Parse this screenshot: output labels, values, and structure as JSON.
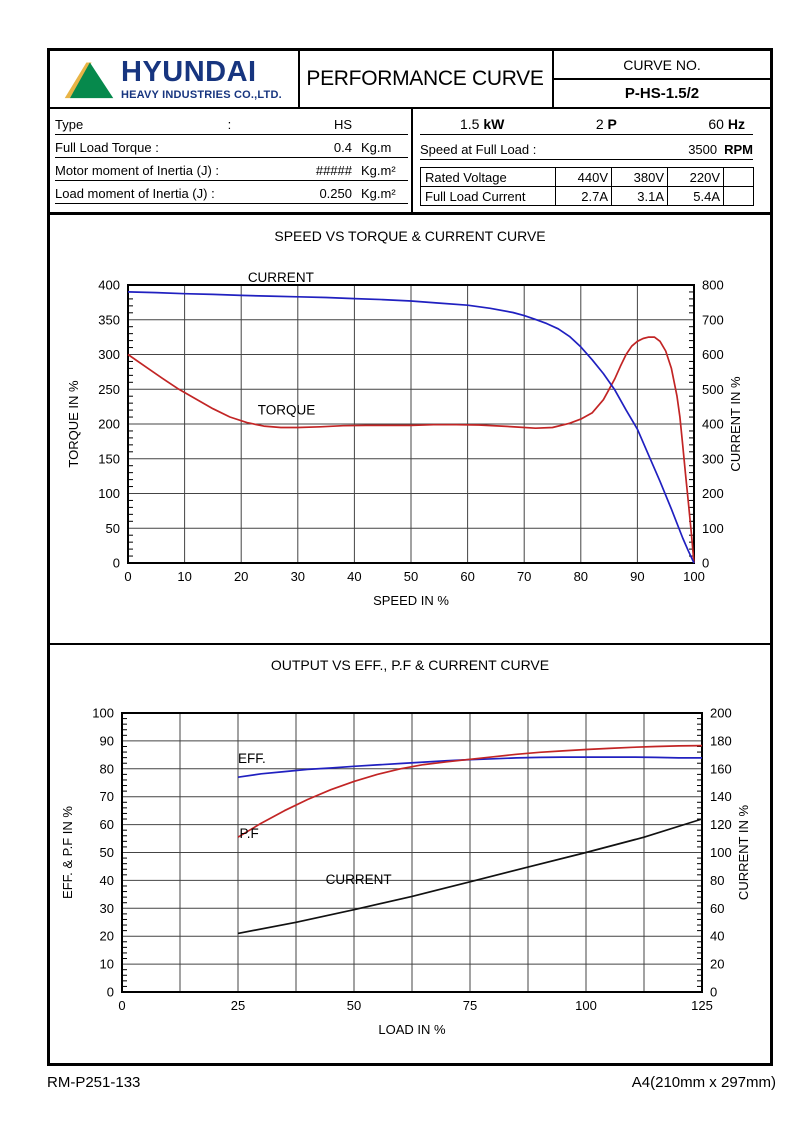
{
  "header": {
    "logo": {
      "company": "HYUNDAI",
      "subtitle": "HEAVY INDUSTRIES CO.,LTD.",
      "navy": "#17357F",
      "green": "#06894C",
      "yellow": "#E8B446"
    },
    "title": "PERFORMANCE CURVE",
    "curve_no_label": "CURVE NO.",
    "curve_no_value": "P-HS-1.5/2"
  },
  "specs_left": {
    "rows": [
      {
        "label": "Type                                        :",
        "value": "HS",
        "unit": ""
      },
      {
        "label": "Full Load Torque :",
        "value": "0.4",
        "unit": "Kg.m"
      },
      {
        "label": "Motor moment of Inertia (J) :",
        "value": "#####",
        "unit": "Kg.m²"
      },
      {
        "label": "Load moment of Inertia (J) :",
        "value": "0.250",
        "unit": "Kg.m²"
      }
    ]
  },
  "specs_right": {
    "power": {
      "value": "1.5",
      "unit": "kW"
    },
    "poles": {
      "value": "2",
      "unit": "P"
    },
    "frequency": {
      "value": "60",
      "unit": "Hz"
    },
    "speed": {
      "label": "Speed at Full Load :",
      "value": "3500",
      "unit": "RPM"
    },
    "table": {
      "rows": [
        [
          "Rated Voltage",
          "440V",
          "380V",
          "220V",
          ""
        ],
        [
          "Full Load Current",
          "2.7A",
          "3.1A",
          "5.4A",
          ""
        ]
      ]
    }
  },
  "footer": {
    "left": "RM-P251-133",
    "right": "A4(210mm x 297mm)"
  },
  "chart_data": [
    {
      "id": "speed-torque-current",
      "type": "line",
      "title": "SPEED VS TORQUE & CURRENT CURVE",
      "xlabel": "SPEED IN %",
      "ylabel_left": "TORQUE IN %",
      "ylabel_right": "CURRENT IN %",
      "x_range": [
        0,
        100
      ],
      "x_major": 10,
      "left_range": [
        0,
        400
      ],
      "left_major": 50,
      "left_minor": 10,
      "right_range": [
        0,
        800
      ],
      "right_major": 100,
      "grid": {
        "v_step": 10,
        "h_step": 50
      },
      "series": [
        {
          "name": "TORQUE",
          "axis": "left",
          "color": "#c22525",
          "points": [
            [
              0,
              300
            ],
            [
              3,
              283
            ],
            [
              6,
              266
            ],
            [
              9,
              250
            ],
            [
              12,
              236
            ],
            [
              15,
              222
            ],
            [
              18,
              210
            ],
            [
              21,
              202
            ],
            [
              24,
              197
            ],
            [
              27,
              195
            ],
            [
              30,
              195
            ],
            [
              34,
              196
            ],
            [
              38,
              197.5
            ],
            [
              42,
              198
            ],
            [
              46,
              198
            ],
            [
              50,
              198
            ],
            [
              54,
              199
            ],
            [
              58,
              199
            ],
            [
              62,
              198.5
            ],
            [
              66,
              197
            ],
            [
              69,
              195.5
            ],
            [
              72,
              194
            ],
            [
              75,
              195
            ],
            [
              78,
              201
            ],
            [
              80,
              207
            ],
            [
              82,
              216
            ],
            [
              84,
              235
            ],
            [
              85,
              250
            ],
            [
              86,
              265
            ],
            [
              87,
              283
            ],
            [
              88,
              300
            ],
            [
              89,
              312
            ],
            [
              90,
              319
            ],
            [
              91,
              323
            ],
            [
              92,
              325
            ],
            [
              93,
              325
            ],
            [
              94,
              319
            ],
            [
              95,
              305
            ],
            [
              96,
              280
            ],
            [
              97,
              240
            ],
            [
              97.5,
              210
            ],
            [
              98,
              170
            ],
            [
              98.5,
              128
            ],
            [
              99,
              88
            ],
            [
              99.5,
              45
            ],
            [
              100,
              0
            ]
          ]
        },
        {
          "name": "CURRENT",
          "axis": "right",
          "color": "#2020c0",
          "points": [
            [
              0,
              780
            ],
            [
              5,
              778
            ],
            [
              10,
              775
            ],
            [
              15,
              773
            ],
            [
              20,
              770
            ],
            [
              25,
              768
            ],
            [
              30,
              766
            ],
            [
              35,
              764
            ],
            [
              40,
              761
            ],
            [
              45,
              758
            ],
            [
              50,
              754
            ],
            [
              55,
              748
            ],
            [
              60,
              742
            ],
            [
              64,
              733
            ],
            [
              68,
              721
            ],
            [
              70,
              712
            ],
            [
              72,
              701
            ],
            [
              74,
              689
            ],
            [
              76,
              674
            ],
            [
              78,
              652
            ],
            [
              80,
              622
            ],
            [
              82,
              585
            ],
            [
              84,
              545
            ],
            [
              86,
              498
            ],
            [
              88,
              440
            ],
            [
              90,
              385
            ],
            [
              92,
              310
            ],
            [
              94,
              235
            ],
            [
              96,
              155
            ],
            [
              98,
              72
            ],
            [
              99,
              35
            ],
            [
              100,
              0
            ]
          ]
        }
      ],
      "annotations": [
        {
          "text": "CURRENT",
          "x": 27,
          "y": 404
        },
        {
          "text": "TORQUE",
          "x": 28,
          "y": 214
        }
      ]
    },
    {
      "id": "output-eff-pf-current",
      "type": "line",
      "title": "OUTPUT VS EFF., P.F & CURRENT CURVE",
      "xlabel": "LOAD IN %",
      "ylabel_left": "EFF. & P.F IN %",
      "ylabel_right": "CURRENT IN %",
      "x_range": [
        0,
        125
      ],
      "x_major": 25,
      "left_range": [
        0,
        100
      ],
      "left_major": 10,
      "left_minor": 2,
      "right_range": [
        0,
        200
      ],
      "right_major": 20,
      "grid": {
        "v_step": 12.5,
        "h_step": 10
      },
      "series": [
        {
          "name": "EFF.",
          "axis": "left",
          "color": "#2020c0",
          "points": [
            [
              25,
              77
            ],
            [
              30,
              78.2
            ],
            [
              35,
              79
            ],
            [
              40,
              79.8
            ],
            [
              45,
              80.3
            ],
            [
              50,
              80.9
            ],
            [
              55,
              81.4
            ],
            [
              60,
              81.9
            ],
            [
              65,
              82.4
            ],
            [
              70,
              82.9
            ],
            [
              75,
              83.3
            ],
            [
              80,
              83.6
            ],
            [
              85,
              83.9
            ],
            [
              90,
              84.1
            ],
            [
              95,
              84.2
            ],
            [
              100,
              84.2
            ],
            [
              105,
              84.2
            ],
            [
              110,
              84.2
            ],
            [
              115,
              84.1
            ],
            [
              120,
              83.9
            ],
            [
              125,
              83.9
            ]
          ]
        },
        {
          "name": "P.F",
          "axis": "left",
          "color": "#c22525",
          "points": [
            [
              25,
              55.5
            ],
            [
              30,
              60.5
            ],
            [
              35,
              65
            ],
            [
              40,
              69
            ],
            [
              45,
              72.5
            ],
            [
              50,
              75.5
            ],
            [
              55,
              78
            ],
            [
              60,
              80
            ],
            [
              65,
              81.5
            ],
            [
              70,
              82.5
            ],
            [
              75,
              83.4
            ],
            [
              80,
              84.3
            ],
            [
              85,
              85.2
            ],
            [
              90,
              85.9
            ],
            [
              95,
              86.4
            ],
            [
              100,
              86.9
            ],
            [
              105,
              87.3
            ],
            [
              110,
              87.7
            ],
            [
              115,
              88
            ],
            [
              120,
              88.2
            ],
            [
              125,
              88.3
            ]
          ]
        },
        {
          "name": "CURRENT",
          "axis": "right",
          "color": "#111111",
          "points": [
            [
              25,
              42
            ],
            [
              37.5,
              50
            ],
            [
              50,
              59
            ],
            [
              62.5,
              68.5
            ],
            [
              75,
              79
            ],
            [
              87.5,
              89.5
            ],
            [
              100,
              100
            ],
            [
              112.5,
              111
            ],
            [
              125,
              124
            ]
          ]
        }
      ],
      "annotations": [
        {
          "text": "EFF.",
          "x": 28,
          "y": 82
        },
        {
          "text": "P.F",
          "x": 27.4,
          "y": 55.2
        },
        {
          "text": "CURRENT",
          "x": 51,
          "y": 38.7
        }
      ]
    }
  ]
}
